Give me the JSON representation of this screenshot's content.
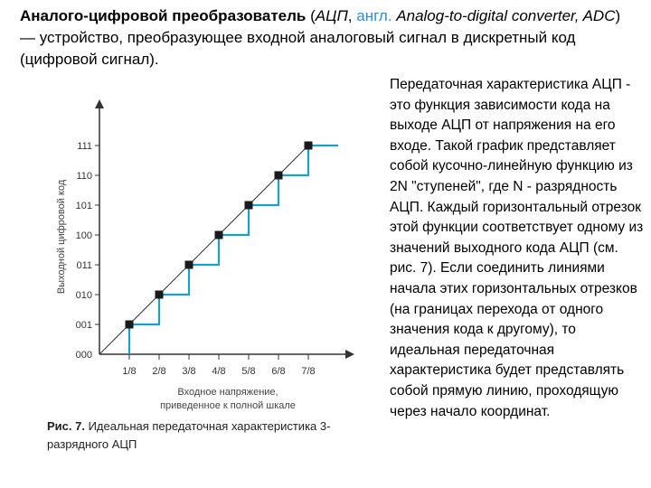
{
  "header": {
    "term": "Аналого-цифровой преобразователь",
    "paren_open": " (",
    "abbr": "АЦП",
    "sep": ", ",
    "lang": "англ.",
    "english": " Analog-to-digital converter, ADC",
    "rest": ") — устройство, преобразующее входной аналоговый сигнал в дискретный код (цифровой сигнал)."
  },
  "side_text": "Передаточная характеристика АЦП - это функция зависимости кода на выходе АЦП от напряжения на его входе. Такой график представляет собой кусочно-линейную функцию из 2N \"ступеней\", где N - разрядность АЦП. Каждый горизонтальный отрезок этой функции соответствует одному из значений выходного кода АЦП (см. рис. 7). Если соединить линиями начала этих горизонтальных отрезков (на границах перехода от одного значения кода к другому), то идеальная передаточная характеристика будет представлять собой прямую линию, проходящую через начало координат.",
  "caption": {
    "number": "Рис. 7.",
    "text": " Идеальная передаточная характеристика 3-разрядного АЦП"
  },
  "colors": {
    "step": "#1b9fd0",
    "ideal_line": "#333333",
    "marker": "#1a1a1a",
    "axis": "#333333",
    "english": "#2b8fd0"
  },
  "chart_data": {
    "type": "line",
    "xlabel": "Входное напряжение, приведенное к полной шкале",
    "ylabel": "Выходной цифровой код",
    "x_ticks": [
      "1/8",
      "2/8",
      "3/8",
      "4/8",
      "5/8",
      "6/8",
      "7/8"
    ],
    "y_ticks": [
      "000",
      "001",
      "010",
      "011",
      "100",
      "101",
      "110",
      "111"
    ],
    "x_range": [
      0,
      1
    ],
    "y_range": [
      0,
      7
    ],
    "series": [
      {
        "role": "step",
        "points": [
          [
            0.125,
            0
          ],
          [
            0.125,
            1
          ],
          [
            0.25,
            1
          ],
          [
            0.25,
            2
          ],
          [
            0.375,
            2
          ],
          [
            0.375,
            3
          ],
          [
            0.5,
            3
          ],
          [
            0.5,
            4
          ],
          [
            0.625,
            4
          ],
          [
            0.625,
            5
          ],
          [
            0.75,
            5
          ],
          [
            0.75,
            6
          ],
          [
            0.875,
            6
          ],
          [
            0.875,
            7
          ],
          [
            1.0,
            7
          ]
        ]
      },
      {
        "role": "ideal",
        "points": [
          [
            0,
            0
          ],
          [
            0.875,
            7
          ]
        ]
      }
    ],
    "markers": [
      [
        0.125,
        1
      ],
      [
        0.25,
        2
      ],
      [
        0.375,
        3
      ],
      [
        0.5,
        4
      ],
      [
        0.625,
        5
      ],
      [
        0.75,
        6
      ],
      [
        0.875,
        7
      ]
    ],
    "grid": false
  }
}
